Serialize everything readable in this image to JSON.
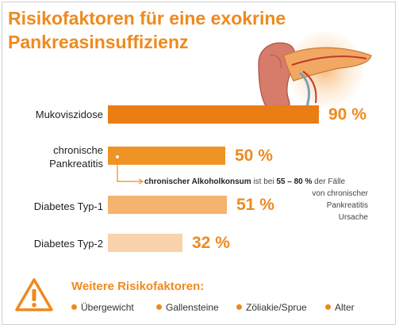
{
  "title": {
    "line1": "Risikofaktoren für eine exokrine",
    "line2": "Pankreasinsuffizienz"
  },
  "colors": {
    "accent": "#ee8a1e",
    "bar_mukoviszidose": "#ea7d14",
    "bar_pankreatitis": "#ef9424",
    "bar_typ1": "#f4b46f",
    "bar_typ2": "#f8d3ab"
  },
  "chart_data": {
    "type": "bar",
    "orientation": "horizontal",
    "categories": [
      "Mukoviszidose",
      "chronische Pankreatitis",
      "Diabetes Typ-1",
      "Diabetes Typ-2"
    ],
    "values": [
      90,
      50,
      51,
      32
    ],
    "value_labels": [
      "90 %",
      "50 %",
      "51 %",
      "32 %"
    ],
    "unit": "%",
    "xlim": [
      0,
      100
    ],
    "grid": false,
    "annotation": {
      "bold_1": "chronischer Alkoholkonsum",
      "text_1": "ist bei",
      "bold_2": "55 – 80 %",
      "text_2": "der Fälle",
      "line_2": "von chronischer",
      "line_3": "Pankreatitis",
      "line_4": "Ursache"
    }
  },
  "more": {
    "title": "Weitere Risikofaktoren:",
    "items": [
      "Übergewicht",
      "Gallensteine",
      "Zöliakie/Sprue",
      "Alter"
    ]
  },
  "icons": {
    "warning": "warning-triangle-icon",
    "bullet": "bullet-dot-icon"
  }
}
